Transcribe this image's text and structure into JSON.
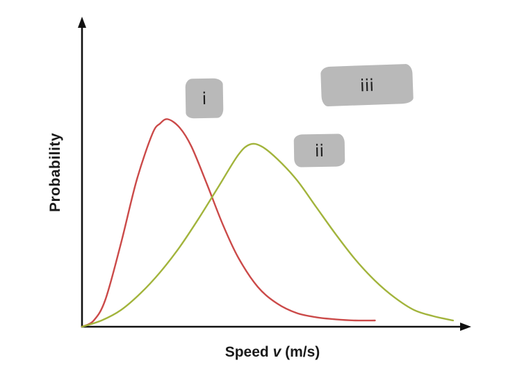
{
  "chart_data": {
    "type": "line",
    "title": "",
    "xlabel": "Speed v (m/s)",
    "xlabel_parts": [
      "Speed ",
      "v",
      " (m/s)"
    ],
    "ylabel": "Probability",
    "xlim": [
      0,
      10
    ],
    "ylim": [
      0,
      1.35
    ],
    "grid": false,
    "ticks": "none",
    "legend": "none",
    "axis_color": "#111111",
    "series": [
      {
        "name": "i",
        "description": "red distribution curve peaking at lower speed",
        "color": "#cb4a49",
        "x": [
          0,
          0.3,
          0.6,
          1.0,
          1.4,
          1.8,
          2.0,
          2.2,
          2.5,
          2.8,
          3.2,
          3.6,
          4.0,
          4.5,
          5.0,
          5.5,
          6.0,
          6.5,
          7.0,
          7.5
        ],
        "y": [
          0,
          0.03,
          0.13,
          0.4,
          0.7,
          0.92,
          0.97,
          0.99,
          0.95,
          0.86,
          0.68,
          0.49,
          0.33,
          0.19,
          0.11,
          0.065,
          0.045,
          0.035,
          0.03,
          0.03
        ]
      },
      {
        "name": "ii",
        "description": "green distribution curve peaking at higher speed",
        "color": "#a2b43c",
        "x": [
          0,
          0.5,
          1.0,
          1.5,
          2.0,
          2.5,
          3.0,
          3.5,
          4.0,
          4.3,
          4.6,
          5.0,
          5.5,
          6.0,
          6.5,
          7.0,
          7.5,
          8.0,
          8.5,
          9.0,
          9.5
        ],
        "y": [
          0,
          0.03,
          0.08,
          0.16,
          0.26,
          0.38,
          0.52,
          0.67,
          0.82,
          0.87,
          0.86,
          0.8,
          0.7,
          0.57,
          0.44,
          0.32,
          0.22,
          0.14,
          0.08,
          0.05,
          0.03
        ]
      }
    ],
    "annotations": [
      {
        "label": "i",
        "box_color": "#b9b9b9"
      },
      {
        "label": "ii",
        "box_color": "#b9b9b9"
      },
      {
        "label": "iii",
        "box_color": "#b9b9b9"
      }
    ]
  }
}
